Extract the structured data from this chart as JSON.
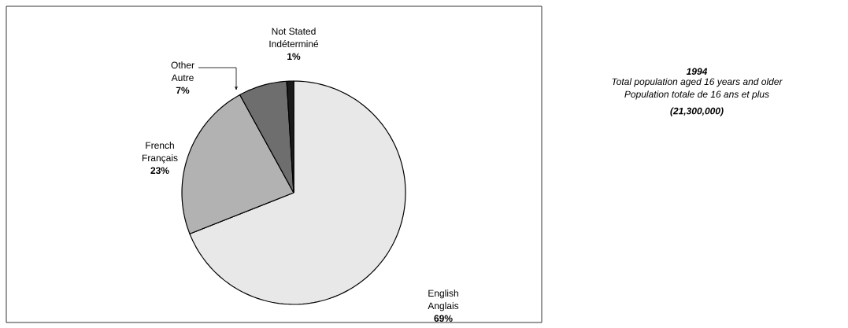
{
  "chart_data": {
    "type": "pie",
    "title": "1994",
    "subtitle": "Total population aged 16 years and older\nPopulation totale de 16 ans et plus",
    "annotations": [
      "(21,300,000)"
    ],
    "categories": [
      "English\nAnglais",
      "French\nFrançais",
      "Other\nAutre",
      "Not Stated\nIndéterminé"
    ],
    "values": [
      69,
      23,
      7,
      1
    ],
    "value_labels": [
      "69%",
      "23%",
      "7%",
      "1%"
    ],
    "colors": [
      "#e8e8e8",
      "#b2b2b2",
      "#6e6e6e",
      "#1a1a1a"
    ]
  }
}
